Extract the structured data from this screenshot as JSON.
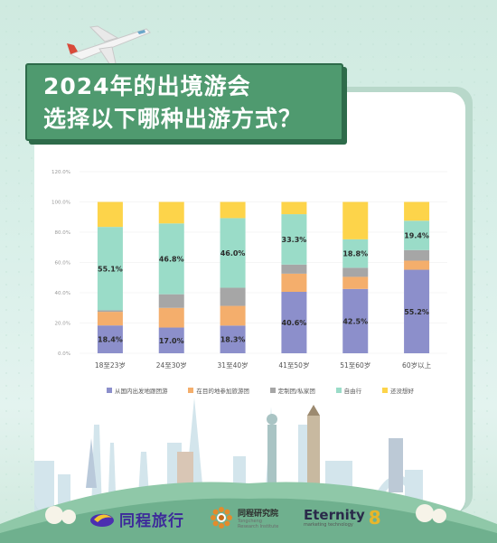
{
  "title": {
    "line1": "2024年的出境游会",
    "line2": "选择以下哪种出游方式？"
  },
  "chart_data": {
    "type": "bar",
    "stacked": true,
    "categories": [
      "18至23岁",
      "24至30岁",
      "31至40岁",
      "41至50岁",
      "51至60岁",
      "60岁以上"
    ],
    "ylim": [
      0,
      120
    ],
    "yticks": [
      0,
      20,
      40,
      60,
      80,
      100,
      120
    ],
    "ytick_labels": [
      "0.0%",
      "20.0%",
      "40.0%",
      "60.0%",
      "80.0%",
      "100.0%",
      "120.0%"
    ],
    "series": [
      {
        "name": "从国内出发地跟团游",
        "color": "#8c8fcb",
        "values": [
          18.4,
          17.0,
          18.3,
          40.6,
          42.5,
          55.2
        ]
      },
      {
        "name": "在目的地参加旅游团",
        "color": "#f4ae6c",
        "values": [
          9.0,
          13.0,
          13.0,
          12.0,
          8.0,
          6.0
        ]
      },
      {
        "name": "定制团/私家团",
        "color": "#a6a6a6",
        "values": [
          1.0,
          9.0,
          12.0,
          6.0,
          6.0,
          7.0
        ]
      },
      {
        "name": "自由行",
        "color": "#9adcc8",
        "values": [
          55.1,
          46.8,
          46.0,
          33.3,
          18.8,
          19.4
        ]
      },
      {
        "name": "还没想好",
        "color": "#fdd44a",
        "values": [
          16.5,
          14.2,
          10.7,
          8.1,
          24.7,
          12.4
        ]
      }
    ],
    "data_labels": [
      {
        "series": 0,
        "category": 0,
        "text": "18.4%"
      },
      {
        "series": 0,
        "category": 1,
        "text": "17.0%"
      },
      {
        "series": 0,
        "category": 2,
        "text": "18.3%"
      },
      {
        "series": 0,
        "category": 3,
        "text": "40.6%"
      },
      {
        "series": 0,
        "category": 4,
        "text": "42.5%"
      },
      {
        "series": 0,
        "category": 5,
        "text": "55.2%"
      },
      {
        "series": 3,
        "category": 0,
        "text": "55.1%"
      },
      {
        "series": 3,
        "category": 1,
        "text": "46.8%"
      },
      {
        "series": 3,
        "category": 2,
        "text": "46.0%"
      },
      {
        "series": 3,
        "category": 3,
        "text": "33.3%"
      },
      {
        "series": 3,
        "category": 4,
        "text": "18.8%"
      },
      {
        "series": 3,
        "category": 5,
        "text": "19.4%"
      }
    ],
    "grid": true,
    "legend_position": "bottom"
  },
  "logos": {
    "tongcheng": "同程旅行",
    "institute_cn": "同程研究院",
    "institute_en1": "Tongcheng",
    "institute_en2": "Research Institute",
    "eternity": "Eternity",
    "eternity_sub": "marketing technology",
    "eternity_mark": "8"
  }
}
